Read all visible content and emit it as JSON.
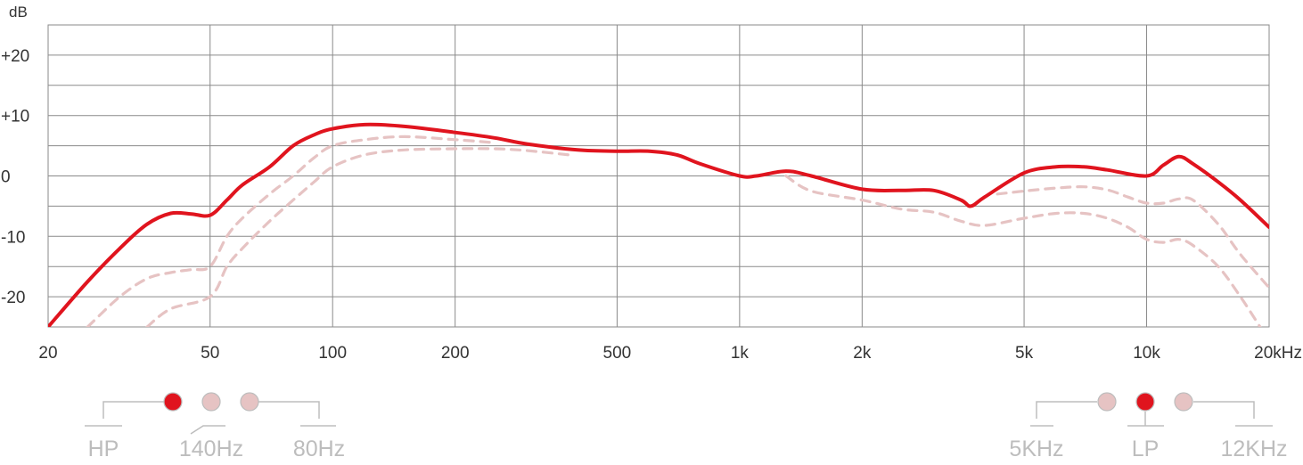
{
  "chart_data": {
    "type": "line",
    "ylabel": "dB",
    "x_scale": "log",
    "xlim": [
      20,
      20000
    ],
    "ylim": [
      -25,
      25
    ],
    "x_ticks": [
      20,
      50,
      100,
      200,
      500,
      1000,
      2000,
      5000,
      10000,
      20000
    ],
    "x_tick_labels": [
      "20",
      "50",
      "100",
      "200",
      "500",
      "1k",
      "2k",
      "5k",
      "10k",
      "20kHz"
    ],
    "y_ticks": [
      20,
      10,
      0,
      -10,
      -20
    ],
    "y_tick_labels": [
      "+20",
      "+10",
      "0",
      "-10",
      "-20"
    ],
    "grid": true,
    "series": [
      {
        "style": "solid",
        "color": "#e0141e",
        "points": [
          [
            20,
            -25
          ],
          [
            25,
            -17.5
          ],
          [
            30,
            -12
          ],
          [
            35,
            -8
          ],
          [
            40,
            -6.2
          ],
          [
            45,
            -6.3
          ],
          [
            50,
            -6.5
          ],
          [
            55,
            -4
          ],
          [
            60,
            -1.5
          ],
          [
            70,
            1.5
          ],
          [
            80,
            5
          ],
          [
            90,
            6.8
          ],
          [
            100,
            7.8
          ],
          [
            120,
            8.5
          ],
          [
            150,
            8.2
          ],
          [
            200,
            7.2
          ],
          [
            250,
            6.3
          ],
          [
            300,
            5.3
          ],
          [
            400,
            4.3
          ],
          [
            500,
            4.1
          ],
          [
            600,
            4.1
          ],
          [
            700,
            3.5
          ],
          [
            800,
            2
          ],
          [
            1000,
            0
          ],
          [
            1100,
            0
          ],
          [
            1300,
            0.8
          ],
          [
            1500,
            0
          ],
          [
            2000,
            -2.2
          ],
          [
            2500,
            -2.4
          ],
          [
            3000,
            -2.4
          ],
          [
            3500,
            -4
          ],
          [
            3700,
            -5
          ],
          [
            4000,
            -3.5
          ],
          [
            5000,
            0.5
          ],
          [
            6000,
            1.5
          ],
          [
            7000,
            1.5
          ],
          [
            8000,
            1
          ],
          [
            10000,
            0
          ],
          [
            11000,
            1.8
          ],
          [
            12000,
            3.2
          ],
          [
            13000,
            2
          ],
          [
            15000,
            -1
          ],
          [
            17000,
            -4
          ],
          [
            20000,
            -8.5
          ]
        ]
      },
      {
        "style": "dashed",
        "color": "#e6c3c3",
        "points": [
          [
            25,
            -25
          ],
          [
            30,
            -20
          ],
          [
            35,
            -17
          ],
          [
            40,
            -16
          ],
          [
            45,
            -15.5
          ],
          [
            50,
            -15
          ],
          [
            55,
            -10
          ],
          [
            60,
            -7
          ],
          [
            70,
            -3
          ],
          [
            80,
            0
          ],
          [
            90,
            3
          ],
          [
            100,
            5
          ],
          [
            120,
            6
          ],
          [
            150,
            6.5
          ],
          [
            200,
            6
          ],
          [
            250,
            5.5
          ]
        ]
      },
      {
        "style": "dashed",
        "color": "#e6c3c3",
        "points": [
          [
            35,
            -25
          ],
          [
            40,
            -22
          ],
          [
            50,
            -20
          ],
          [
            55,
            -15
          ],
          [
            60,
            -12
          ],
          [
            70,
            -7.5
          ],
          [
            80,
            -4
          ],
          [
            90,
            -1
          ],
          [
            100,
            1.5
          ],
          [
            120,
            3.5
          ],
          [
            150,
            4.3
          ],
          [
            200,
            4.5
          ],
          [
            250,
            4.5
          ],
          [
            300,
            4.2
          ],
          [
            380,
            3.5
          ]
        ]
      },
      {
        "style": "dashed",
        "color": "#e6c3c3",
        "points": [
          [
            1300,
            0
          ],
          [
            1500,
            -2.5
          ],
          [
            2000,
            -4
          ],
          [
            2500,
            -5.5
          ],
          [
            3000,
            -6
          ],
          [
            3500,
            -7.5
          ],
          [
            4000,
            -8.2
          ],
          [
            5000,
            -7
          ],
          [
            6000,
            -6.2
          ],
          [
            7000,
            -6.2
          ],
          [
            8000,
            -7
          ],
          [
            9000,
            -8.5
          ],
          [
            10000,
            -10.5
          ],
          [
            11000,
            -11
          ],
          [
            12000,
            -10.5
          ],
          [
            13000,
            -11.5
          ],
          [
            15000,
            -15
          ],
          [
            17000,
            -20
          ],
          [
            19000,
            -25
          ]
        ]
      },
      {
        "style": "dashed",
        "color": "#e6c3c3",
        "points": [
          [
            4300,
            -3
          ],
          [
            5000,
            -2.5
          ],
          [
            6000,
            -2
          ],
          [
            7000,
            -1.8
          ],
          [
            8000,
            -2.3
          ],
          [
            9000,
            -3.5
          ],
          [
            10000,
            -4.5
          ],
          [
            11000,
            -4.5
          ],
          [
            12000,
            -3.8
          ],
          [
            13000,
            -4
          ],
          [
            15000,
            -8
          ],
          [
            17000,
            -13
          ],
          [
            20000,
            -18.5
          ]
        ]
      }
    ]
  },
  "hp_selector": {
    "labels": [
      "HP",
      "140Hz",
      "80Hz"
    ],
    "dots": [
      {
        "state": "active",
        "color": "#e0141e"
      },
      {
        "state": "inactive",
        "color": "#e6c3c3"
      },
      {
        "state": "inactive",
        "color": "#e6c3c3"
      }
    ]
  },
  "lp_selector": {
    "labels": [
      "5KHz",
      "LP",
      "12KHz"
    ],
    "dots": [
      {
        "state": "inactive",
        "color": "#e6c3c3"
      },
      {
        "state": "active",
        "color": "#e0141e"
      },
      {
        "state": "inactive",
        "color": "#e6c3c3"
      }
    ]
  }
}
